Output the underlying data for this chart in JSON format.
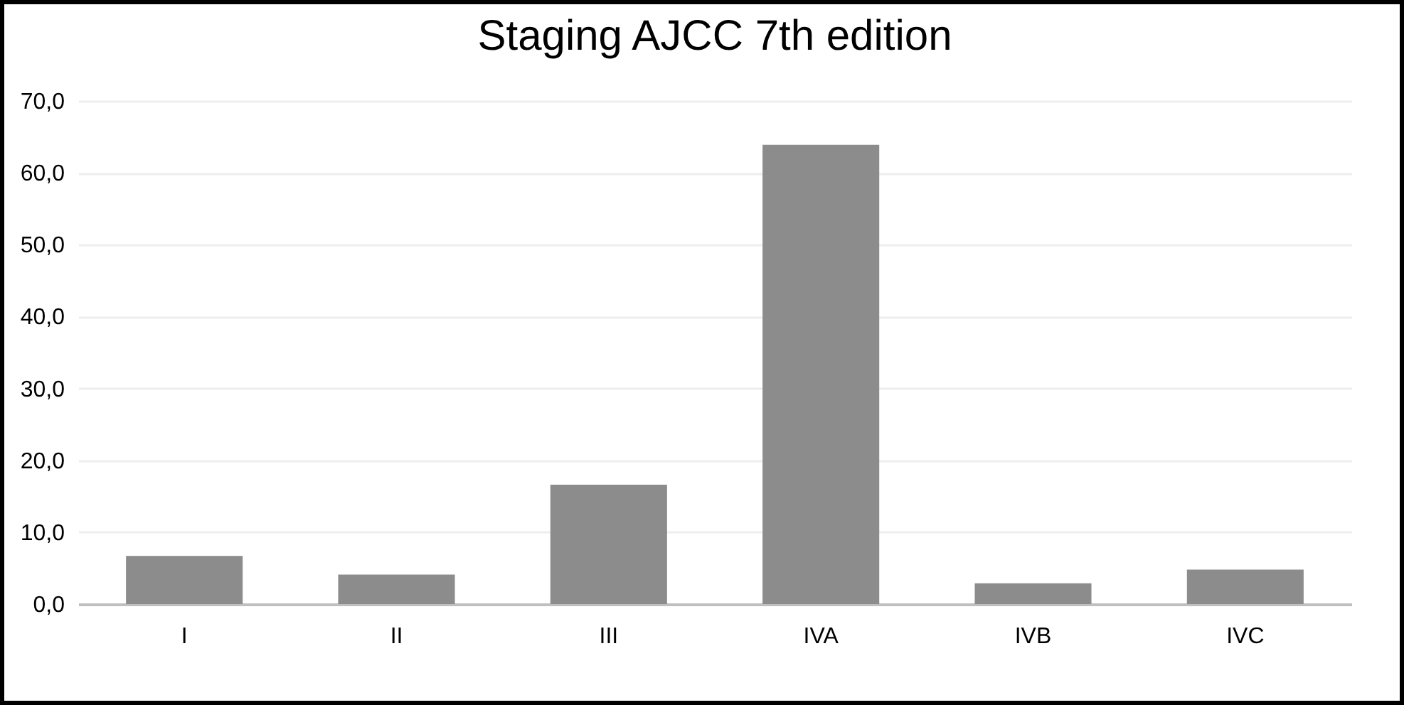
{
  "chart_data": {
    "type": "bar",
    "title": "Staging AJCC 7th edition",
    "categories": [
      "I",
      "II",
      "III",
      "IVA",
      "IVB",
      "IVC"
    ],
    "values": [
      6.7,
      4.1,
      16.6,
      63.9,
      2.9,
      4.8
    ],
    "color": "#8c8c8c",
    "ylim": [
      0,
      70
    ],
    "yticks": [
      {
        "value": 0,
        "label": "0,0"
      },
      {
        "value": 10,
        "label": "10,0"
      },
      {
        "value": 20,
        "label": "20,0"
      },
      {
        "value": 30,
        "label": "30,0"
      },
      {
        "value": 40,
        "label": "40,0"
      },
      {
        "value": 50,
        "label": "50,0"
      },
      {
        "value": 60,
        "label": "60,0"
      },
      {
        "value": 70,
        "label": "70,0"
      }
    ],
    "grid": "y"
  }
}
